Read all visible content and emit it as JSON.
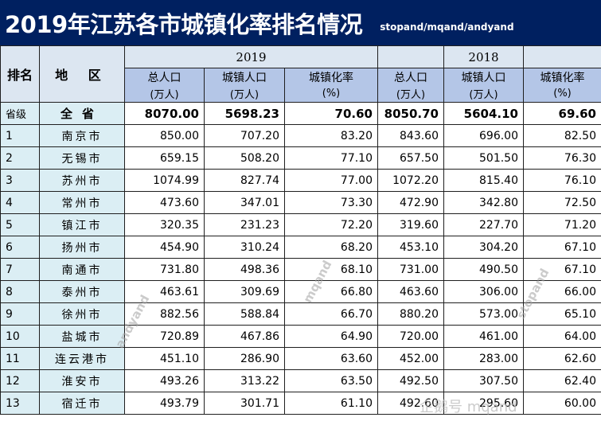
{
  "title": "2019年江苏各市城镇化率排名情况",
  "subtitle": "stopand/mqand/andyand",
  "headers": {
    "rank": "排名",
    "region": "地 区",
    "year1": "2019",
    "year2": "2018",
    "col_pop": "总人口",
    "col_urban": "城镇人口",
    "col_rate": "城镇化率",
    "unit_pop": "(万人)",
    "unit_urban": "(万人)",
    "unit_rate": "(%)"
  },
  "province_row": {
    "rank": "省级",
    "region": "全省",
    "pop_2019": "8070.00",
    "urban_2019": "5698.23",
    "rate_2019": "70.60",
    "pop_2018": "8050.70",
    "urban_2018": "5604.10",
    "rate_2018": "69.60"
  },
  "rows": [
    {
      "rank": "1",
      "region": "南京市",
      "pop_2019": "850.00",
      "urban_2019": "707.20",
      "rate_2019": "83.20",
      "pop_2018": "843.60",
      "urban_2018": "696.00",
      "rate_2018": "82.50"
    },
    {
      "rank": "2",
      "region": "无锡市",
      "pop_2019": "659.15",
      "urban_2019": "508.20",
      "rate_2019": "77.10",
      "pop_2018": "657.50",
      "urban_2018": "501.50",
      "rate_2018": "76.30"
    },
    {
      "rank": "3",
      "region": "苏州市",
      "pop_2019": "1074.99",
      "urban_2019": "827.74",
      "rate_2019": "77.00",
      "pop_2018": "1072.20",
      "urban_2018": "815.40",
      "rate_2018": "76.10"
    },
    {
      "rank": "4",
      "region": "常州市",
      "pop_2019": "473.60",
      "urban_2019": "347.01",
      "rate_2019": "73.30",
      "pop_2018": "472.90",
      "urban_2018": "342.80",
      "rate_2018": "72.50"
    },
    {
      "rank": "5",
      "region": "镇江市",
      "pop_2019": "320.35",
      "urban_2019": "231.23",
      "rate_2019": "72.20",
      "pop_2018": "319.60",
      "urban_2018": "227.70",
      "rate_2018": "71.20"
    },
    {
      "rank": "6",
      "region": "扬州市",
      "pop_2019": "454.90",
      "urban_2019": "310.24",
      "rate_2019": "68.20",
      "pop_2018": "453.10",
      "urban_2018": "304.20",
      "rate_2018": "67.10"
    },
    {
      "rank": "7",
      "region": "南通市",
      "pop_2019": "731.80",
      "urban_2019": "498.36",
      "rate_2019": "68.10",
      "pop_2018": "731.00",
      "urban_2018": "490.50",
      "rate_2018": "67.10"
    },
    {
      "rank": "8",
      "region": "泰州市",
      "pop_2019": "463.61",
      "urban_2019": "309.69",
      "rate_2019": "66.80",
      "pop_2018": "463.60",
      "urban_2018": "306.00",
      "rate_2018": "66.00"
    },
    {
      "rank": "9",
      "region": "徐州市",
      "pop_2019": "882.56",
      "urban_2019": "588.84",
      "rate_2019": "66.70",
      "pop_2018": "880.20",
      "urban_2018": "573.00",
      "rate_2018": "65.10"
    },
    {
      "rank": "10",
      "region": "盐城市",
      "pop_2019": "720.89",
      "urban_2019": "467.86",
      "rate_2019": "64.90",
      "pop_2018": "720.00",
      "urban_2018": "461.00",
      "rate_2018": "64.00"
    },
    {
      "rank": "11",
      "region": "连云港市",
      "pop_2019": "451.10",
      "urban_2019": "286.90",
      "rate_2019": "63.60",
      "pop_2018": "452.00",
      "urban_2018": "283.00",
      "rate_2018": "62.60"
    },
    {
      "rank": "12",
      "region": "淮安市",
      "pop_2019": "493.26",
      "urban_2019": "313.22",
      "rate_2019": "63.50",
      "pop_2018": "492.50",
      "urban_2018": "307.50",
      "rate_2018": "62.40"
    },
    {
      "rank": "13",
      "region": "宿迁市",
      "pop_2019": "493.79",
      "urban_2019": "301.71",
      "rate_2019": "61.10",
      "pop_2018": "492.60",
      "urban_2018": "295.60",
      "rate_2018": "60.00"
    }
  ],
  "watermarks": [
    "andyand",
    "mqand",
    "stopand"
  ],
  "corner_watermark": "企鹅号 mqand",
  "colors": {
    "title_bg": "#002060",
    "header_light": "#dce6f1",
    "header_mid": "#b4c6e7",
    "label_col_bg": "#dbeef4"
  }
}
